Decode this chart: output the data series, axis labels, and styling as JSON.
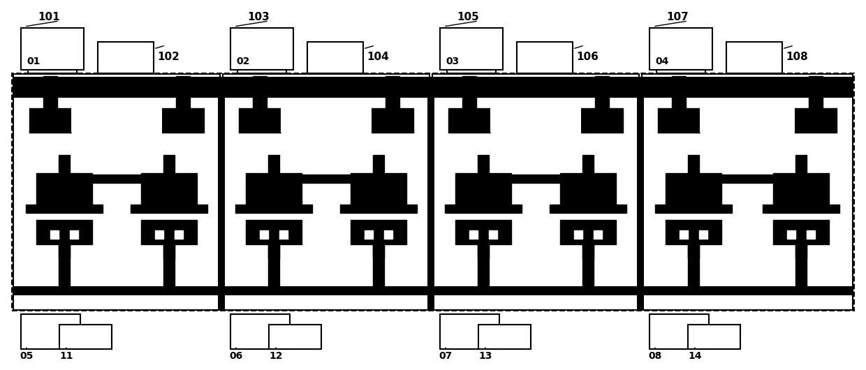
{
  "figure_width": 12.4,
  "figure_height": 5.3,
  "dpi": 100,
  "bg_color": "#ffffff",
  "num_cells": 4,
  "cell_labels": [
    "01",
    "02",
    "03",
    "04"
  ],
  "cell_top_labels": [
    "101",
    "103",
    "105",
    "107"
  ],
  "cell_top_labels2": [
    "102",
    "104",
    "106",
    "108"
  ],
  "cell_bottom_labels": [
    "05",
    "06",
    "07",
    "08"
  ],
  "cell_bottom_labels2": [
    "11",
    "12",
    "13",
    "14"
  ]
}
